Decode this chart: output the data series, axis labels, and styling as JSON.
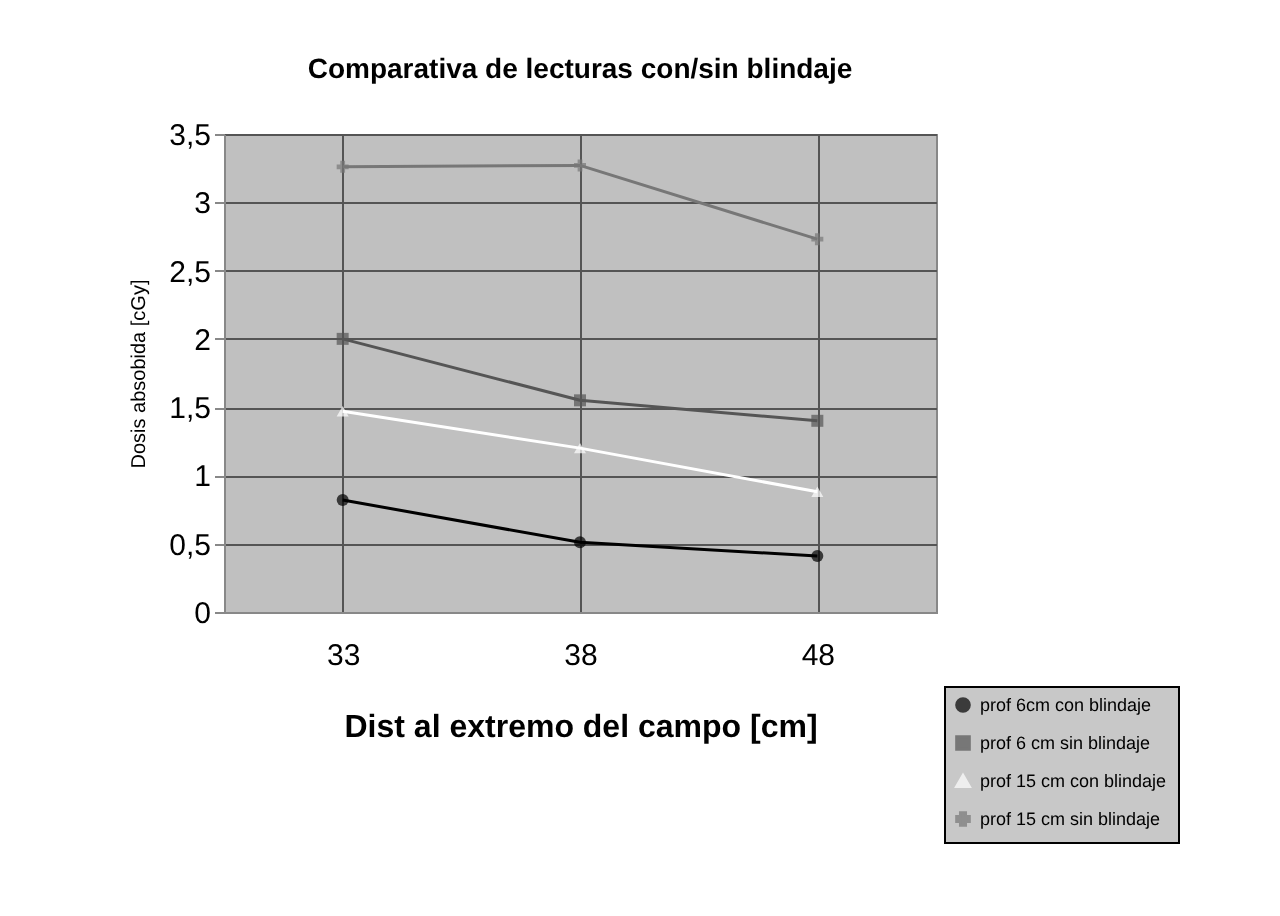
{
  "chart_data": {
    "type": "line",
    "title": "Comparativa de lecturas con/sin blindaje",
    "xlabel": "Dist al extremo del campo [cm]",
    "ylabel": "Dosis absobida [cGy]",
    "categories": [
      "33",
      "38",
      "48"
    ],
    "ylim": [
      0,
      3.5
    ],
    "yticks": [
      {
        "value": 0,
        "label": "0"
      },
      {
        "value": 0.5,
        "label": "0,5"
      },
      {
        "value": 1,
        "label": "1"
      },
      {
        "value": 1.5,
        "label": "1,5"
      },
      {
        "value": 2,
        "label": "2"
      },
      {
        "value": 2.5,
        "label": "2,5"
      },
      {
        "value": 3,
        "label": "3"
      },
      {
        "value": 3.5,
        "label": "3,5"
      }
    ],
    "grid": true,
    "legend": "bottom right",
    "line_style": "solid",
    "series": [
      {
        "name": "prof 6cm con blindaje",
        "color": "#000000",
        "marker": "circle",
        "values": [
          0.82,
          0.51,
          0.41
        ]
      },
      {
        "name": "prof 6 cm sin blindaje",
        "color": "#555555",
        "marker": "square",
        "values": [
          2.0,
          1.55,
          1.4
        ]
      },
      {
        "name": "prof 15 cm con blindaje",
        "color": "#ffffff",
        "marker": "triangle",
        "values": [
          1.47,
          1.2,
          0.88
        ]
      },
      {
        "name": "prof 15 cm sin blindaje",
        "color": "#777777",
        "marker": "cross",
        "values": [
          3.26,
          3.27,
          2.73
        ]
      }
    ]
  }
}
